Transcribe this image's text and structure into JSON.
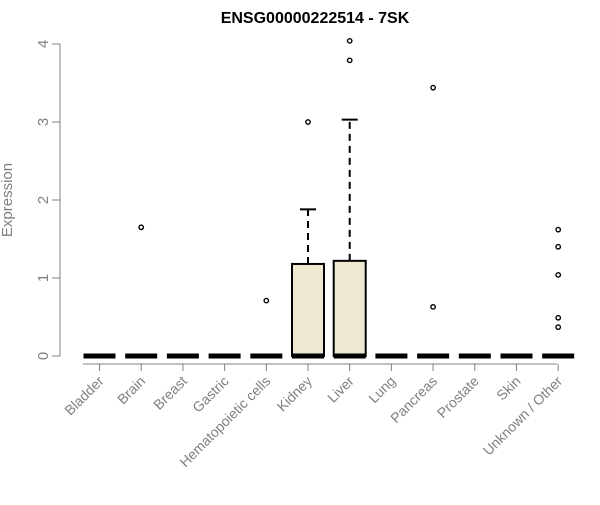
{
  "chart_data": {
    "type": "box",
    "title": "ENSG00000222514 - 7SK",
    "xlabel": "",
    "ylabel": "Expression",
    "ylim": [
      0,
      4
    ],
    "yticks": [
      0,
      1,
      2,
      3,
      4
    ],
    "grid": false,
    "colors": {
      "box_fill": "#EEE8D0",
      "stroke": "#000000",
      "axis": "#808080"
    },
    "categories": [
      "Bladder",
      "Brain",
      "Breast",
      "Gastric",
      "Hematopoietic cells",
      "Kidney",
      "Liver",
      "Lung",
      "Pancreas",
      "Prostate",
      "Skin",
      "Unknown / Other"
    ],
    "boxes": [
      {
        "category": "Bladder",
        "min": 0,
        "q1": 0,
        "median": 0,
        "q3": 0,
        "max": 0,
        "outliers": []
      },
      {
        "category": "Brain",
        "min": 0,
        "q1": 0,
        "median": 0,
        "q3": 0,
        "max": 0,
        "outliers": [
          1.65
        ]
      },
      {
        "category": "Breast",
        "min": 0,
        "q1": 0,
        "median": 0,
        "q3": 0,
        "max": 0,
        "outliers": []
      },
      {
        "category": "Gastric",
        "min": 0,
        "q1": 0,
        "median": 0,
        "q3": 0,
        "max": 0,
        "outliers": []
      },
      {
        "category": "Hematopoietic cells",
        "min": 0,
        "q1": 0,
        "median": 0,
        "q3": 0,
        "max": 0,
        "outliers": [
          0.71
        ]
      },
      {
        "category": "Kidney",
        "min": 0,
        "q1": 0,
        "median": 0,
        "q3": 1.18,
        "max": 1.88,
        "outliers": [
          3.0
        ]
      },
      {
        "category": "Liver",
        "min": 0,
        "q1": 0,
        "median": 0,
        "q3": 1.22,
        "max": 3.03,
        "outliers": [
          3.79,
          4.04
        ]
      },
      {
        "category": "Lung",
        "min": 0,
        "q1": 0,
        "median": 0,
        "q3": 0,
        "max": 0,
        "outliers": []
      },
      {
        "category": "Pancreas",
        "min": 0,
        "q1": 0,
        "median": 0,
        "q3": 0,
        "max": 0,
        "outliers": [
          0.63,
          3.44
        ]
      },
      {
        "category": "Prostate",
        "min": 0,
        "q1": 0,
        "median": 0,
        "q3": 0,
        "max": 0,
        "outliers": []
      },
      {
        "category": "Skin",
        "min": 0,
        "q1": 0,
        "median": 0,
        "q3": 0,
        "max": 0,
        "outliers": []
      },
      {
        "category": "Unknown / Other",
        "min": 0,
        "q1": 0,
        "median": 0,
        "q3": 0,
        "max": 0,
        "outliers": [
          0.37,
          0.49,
          1.04,
          1.4,
          1.62
        ]
      }
    ]
  }
}
